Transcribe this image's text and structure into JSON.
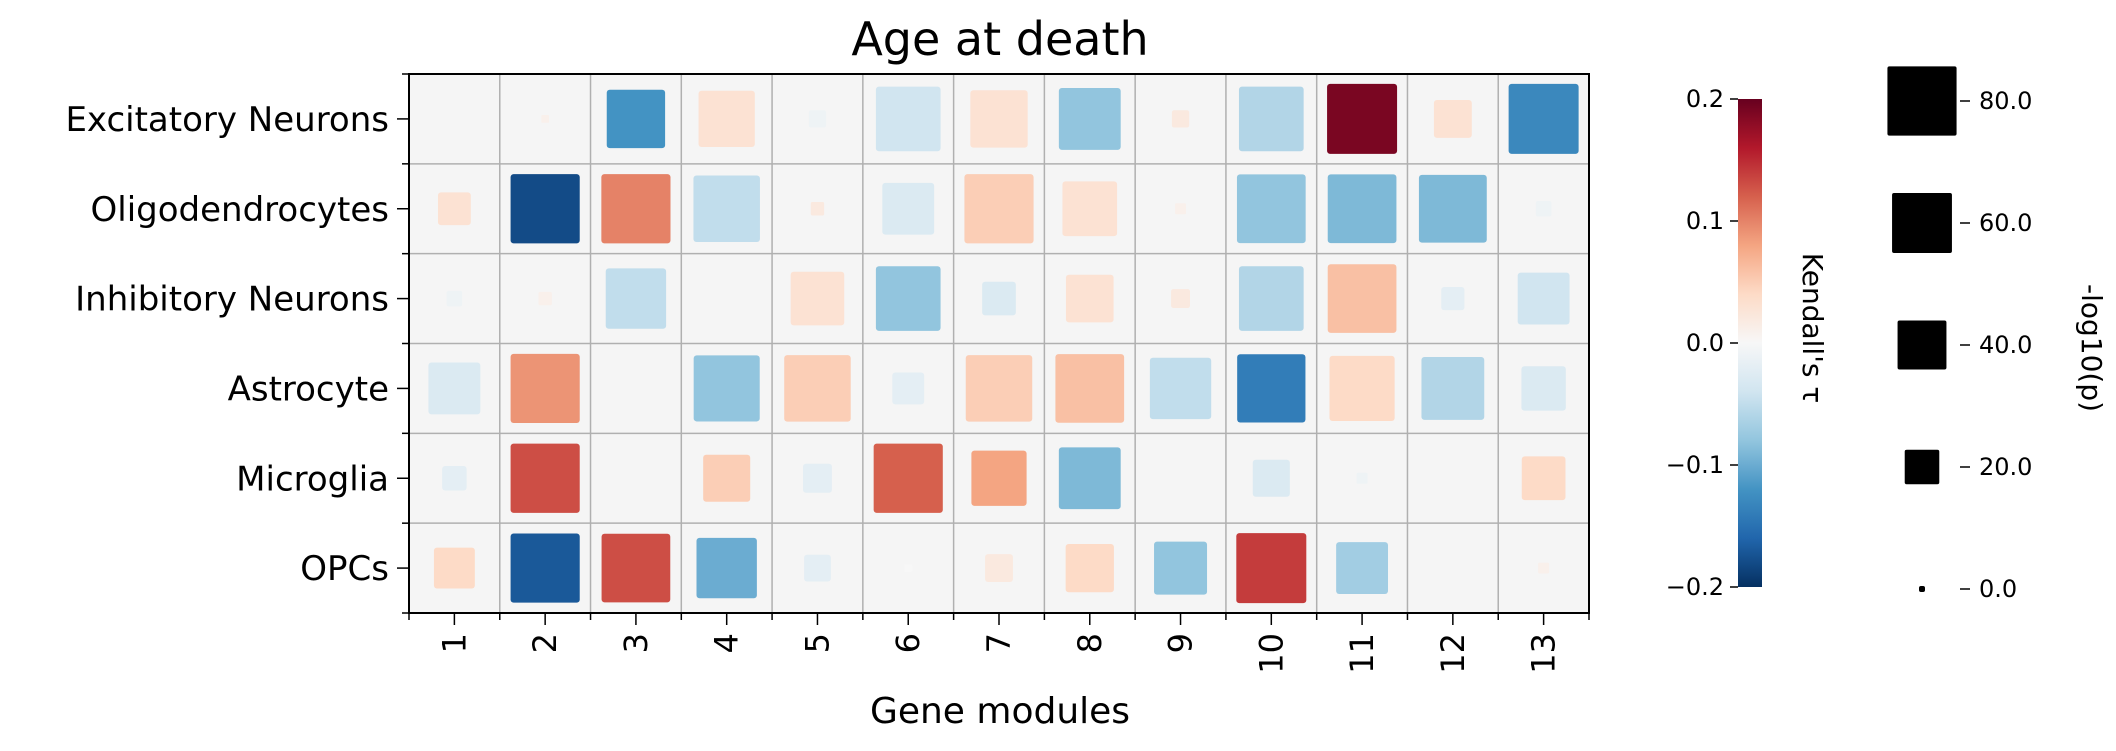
{
  "chart_data": {
    "type": "heatmap",
    "title": "Age at death",
    "xlabel": "Gene modules",
    "ylabel": "",
    "x_categories": [
      "1",
      "2",
      "3",
      "4",
      "5",
      "6",
      "7",
      "8",
      "9",
      "10",
      "11",
      "12",
      "13"
    ],
    "y_categories": [
      "Excitatory Neurons",
      "Oligodendrocytes",
      "Inhibitory Neurons",
      "Astrocyte",
      "Microglia",
      "OPCs"
    ],
    "color_metric": "Kendall's τ",
    "color_range": [
      -0.2,
      0.2
    ],
    "colormap": "RdBu_r",
    "colorbar_label": "Kendall's τ",
    "colorbar_ticks": [
      "0.2",
      "0.1",
      "0.0",
      "−0.1",
      "−0.2"
    ],
    "size_metric": "-log10(p)",
    "size_legend_label": "-log10(p)",
    "size_legend_ticks": [
      "80.0",
      "60.0",
      "40.0",
      "20.0",
      "0.0"
    ],
    "size_legend_values": [
      80,
      60,
      40,
      20,
      0
    ],
    "background_color": "#f5f5f5",
    "grid": true,
    "cells": [
      [
        [
          0,
          0
        ],
        [
          0.01,
          1
        ],
        [
          -0.12,
          57
        ],
        [
          0.03,
          53
        ],
        [
          -0.01,
          5
        ],
        [
          -0.04,
          70
        ],
        [
          0.03,
          55
        ],
        [
          -0.08,
          64
        ],
        [
          0.02,
          5
        ],
        [
          -0.06,
          70
        ],
        [
          0.19,
          82
        ],
        [
          0.03,
          24
        ],
        [
          -0.13,
          82
        ]
      ],
      [
        [
          0.03,
          18
        ],
        [
          -0.18,
          80
        ],
        [
          0.1,
          80
        ],
        [
          -0.05,
          74
        ],
        [
          0.02,
          3
        ],
        [
          -0.03,
          45
        ],
        [
          0.05,
          80
        ],
        [
          0.03,
          50
        ],
        [
          0.01,
          2
        ],
        [
          -0.08,
          79
        ],
        [
          -0.09,
          79
        ],
        [
          -0.09,
          77
        ],
        [
          -0.01,
          4
        ]
      ],
      [
        [
          -0.01,
          4
        ],
        [
          0.01,
          3
        ],
        [
          -0.05,
          61
        ],
        [
          0.0,
          0
        ],
        [
          0.03,
          48
        ],
        [
          -0.08,
          70
        ],
        [
          -0.03,
          19
        ],
        [
          0.03,
          38
        ],
        [
          0.02,
          6
        ],
        [
          -0.06,
          70
        ],
        [
          0.06,
          79
        ],
        [
          -0.02,
          9
        ],
        [
          -0.04,
          45
        ]
      ],
      [
        [
          -0.03,
          45
        ],
        [
          0.09,
          80
        ],
        [
          0.0,
          0
        ],
        [
          -0.08,
          73
        ],
        [
          0.05,
          74
        ],
        [
          -0.02,
          17
        ],
        [
          0.05,
          74
        ],
        [
          0.06,
          79
        ],
        [
          -0.05,
          63
        ],
        [
          -0.14,
          78
        ],
        [
          0.04,
          71
        ],
        [
          -0.06,
          66
        ],
        [
          -0.03,
          33
        ]
      ],
      [
        [
          -0.02,
          10
        ],
        [
          0.13,
          80
        ],
        [
          0.0,
          0
        ],
        [
          0.05,
          37
        ],
        [
          -0.02,
          14
        ],
        [
          0.12,
          80
        ],
        [
          0.08,
          51
        ],
        [
          -0.09,
          64
        ],
        [
          0.0,
          0
        ],
        [
          -0.03,
          23
        ],
        [
          -0.01,
          2
        ],
        [
          0.0,
          0
        ],
        [
          0.04,
          32
        ]
      ],
      [
        [
          0.04,
          28
        ],
        [
          -0.17,
          80
        ],
        [
          0.13,
          79
        ],
        [
          -0.1,
          61
        ],
        [
          -0.02,
          12
        ],
        [
          0.0,
          1
        ],
        [
          0.02,
          13
        ],
        [
          0.04,
          39
        ],
        [
          -0.08,
          47
        ],
        [
          0.14,
          82
        ],
        [
          -0.07,
          45
        ],
        [
          0.0,
          0
        ],
        [
          0.01,
          2
        ]
      ]
    ]
  }
}
